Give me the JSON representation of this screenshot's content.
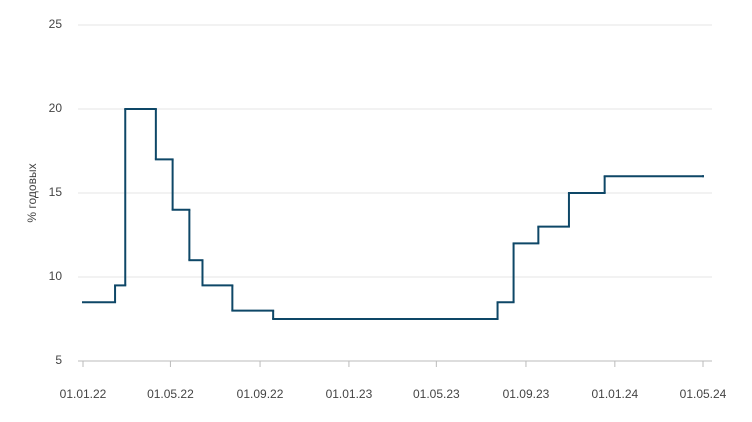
{
  "chart_data": {
    "type": "line",
    "step": "post",
    "y_label": "% годовых",
    "x": [
      "01.01.22",
      "14.02.22",
      "28.02.22",
      "11.04.22",
      "04.05.22",
      "27.05.22",
      "14.06.22",
      "25.07.22",
      "19.09.22",
      "24.07.23",
      "15.08.23",
      "18.09.23",
      "30.10.23",
      "18.12.23",
      "01.05.24"
    ],
    "series": [
      {
        "color": "#0e4767",
        "values": [
          8.5,
          9.5,
          20,
          17,
          14,
          11,
          9.5,
          8,
          7.5,
          8.5,
          12,
          13,
          15,
          16,
          16
        ]
      }
    ],
    "xlim": [
      "01.01.22",
      "01.05.24"
    ],
    "xticks": [
      "01.01.22",
      "01.05.22",
      "01.09.22",
      "01.01.23",
      "01.05.23",
      "01.09.23",
      "01.01.24",
      "01.05.24"
    ],
    "ylim": [
      5,
      25
    ],
    "yticks": [
      5,
      10,
      15,
      20,
      25
    ],
    "grid": true
  }
}
